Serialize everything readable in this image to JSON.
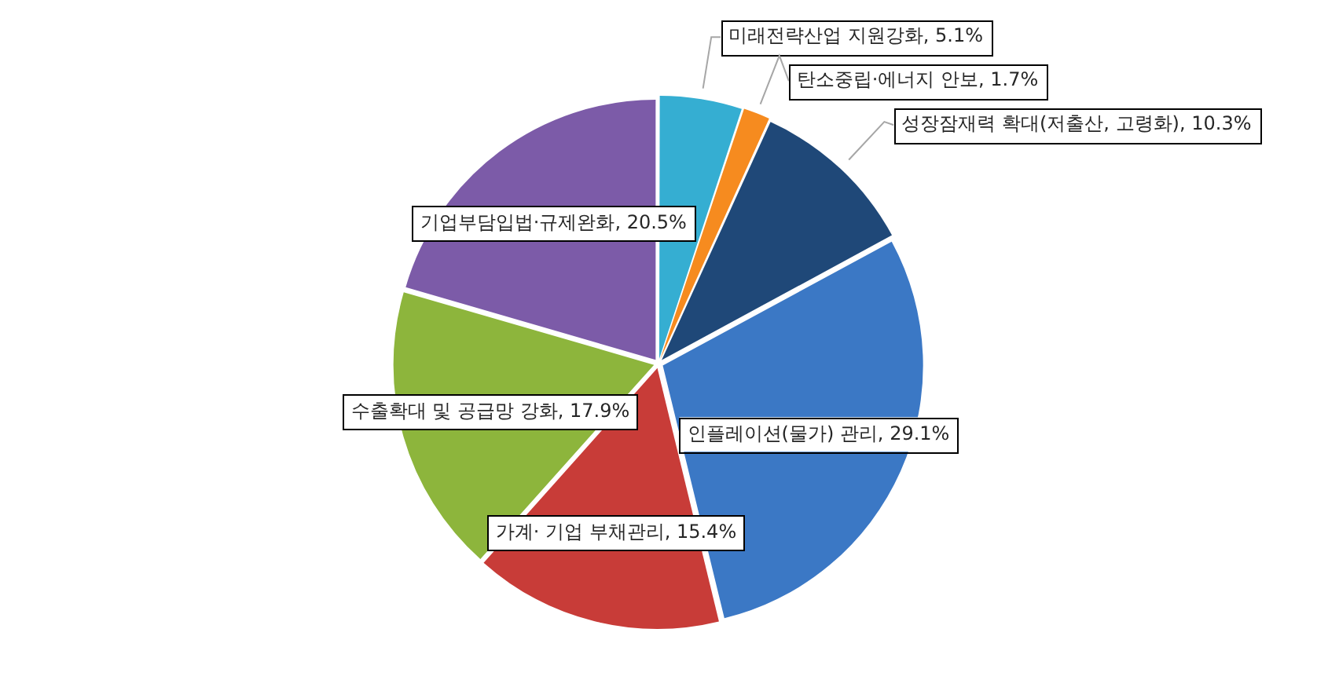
{
  "chart_data": {
    "type": "pie",
    "categories": [
      "미래전략산업 지원강화",
      "탄소중립·에너지 안보",
      "성장잠재력 확대(저출산, 고령화)",
      "인플레이션(물가) 관리",
      "가계· 기업 부채관리",
      "수출확대 및 공급망 강화",
      "기업부담입법·규제완화"
    ],
    "values": [
      5.1,
      1.7,
      10.3,
      29.1,
      15.4,
      17.9,
      20.5
    ],
    "value_labels": [
      "5.1%",
      "1.7%",
      "10.3%",
      "29.1%",
      "15.4%",
      "17.9%",
      "20.5%"
    ],
    "colors": [
      "#35aed2",
      "#f68b1f",
      "#1f4878",
      "#3b78c5",
      "#c83c38",
      "#8db53c",
      "#7c5ba8"
    ],
    "legend": false
  }
}
